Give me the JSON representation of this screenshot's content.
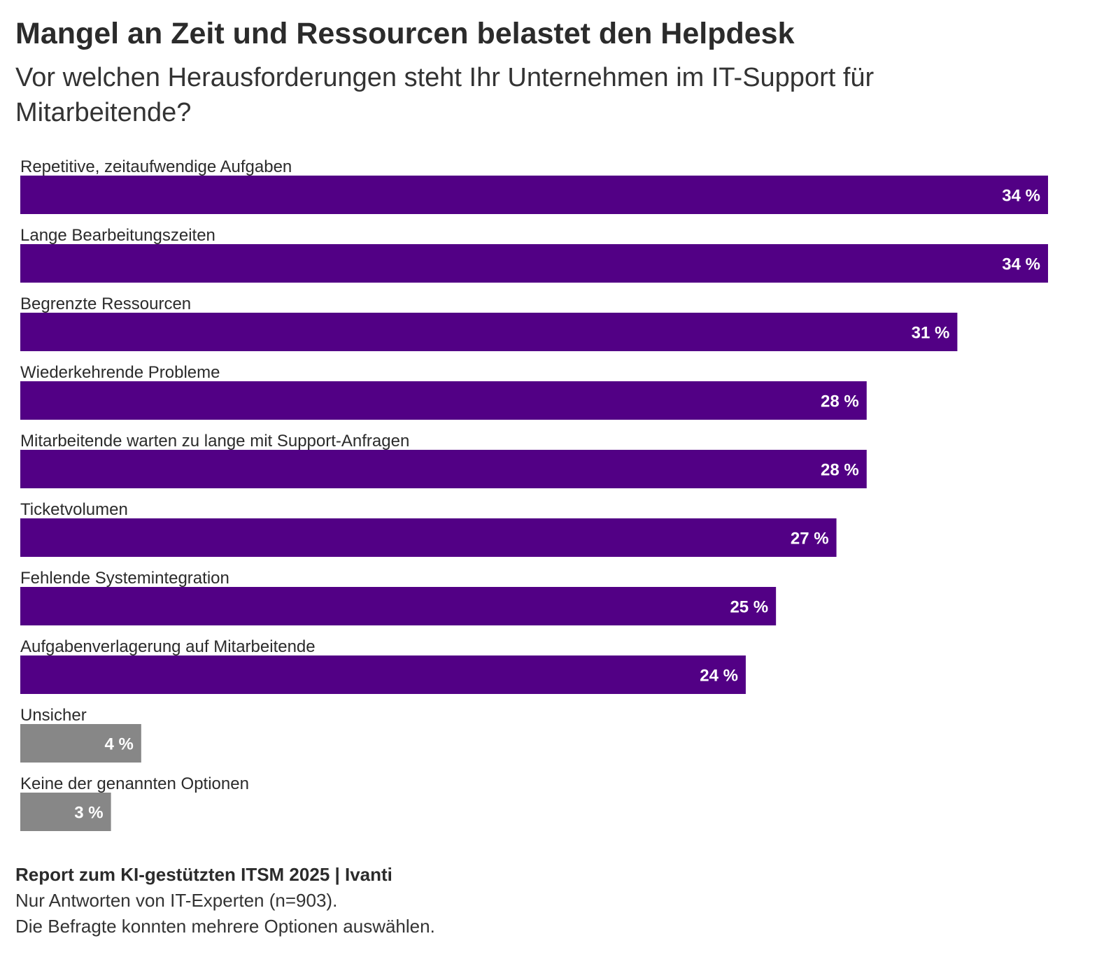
{
  "chart_data": {
    "type": "bar",
    "orientation": "horizontal",
    "title": "Mangel an Zeit und Ressourcen belastet den Helpdesk",
    "subtitle": "Vor welchen Herausforderungen steht Ihr Unternehmen im IT-Support für Mitarbeitende?",
    "categories": [
      "Repetitive, zeitaufwendige Aufgaben",
      "Lange Bearbeitungszeiten",
      "Begrenzte Ressourcen",
      "Wiederkehrende Probleme",
      "Mitarbeitende warten zu lange mit Support-Anfragen",
      "Ticketvolumen",
      "Fehlende Systemintegration",
      "Aufgabenverlagerung auf Mitarbeitende",
      "Unsicher",
      "Keine der genannten Optionen"
    ],
    "values": [
      34,
      34,
      31,
      28,
      28,
      27,
      25,
      24,
      4,
      3
    ],
    "value_labels": [
      "34 %",
      "34 %",
      "31 %",
      "28 %",
      "28 %",
      "27 %",
      "25 %",
      "24 %",
      "4 %",
      "3 %"
    ],
    "bar_colors": [
      "#520085",
      "#520085",
      "#520085",
      "#520085",
      "#520085",
      "#520085",
      "#520085",
      "#520085",
      "#878787",
      "#878787"
    ],
    "xlim": [
      0,
      34
    ],
    "xlabel": "",
    "ylabel": "",
    "grid": false
  },
  "footer": {
    "source": "Report zum KI-gestützten ITSM 2025 | Ivanti",
    "note1": "Nur Antworten von IT-Experten (n=903).",
    "note2": "Die Befragte konnten mehrere Optionen auswählen."
  }
}
